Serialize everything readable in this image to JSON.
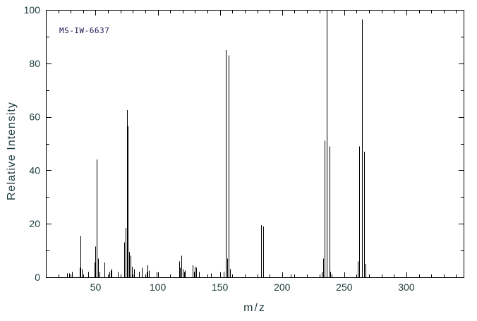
{
  "chart_data": {
    "type": "bar",
    "subtype": "mass-spectrum-stick-plot",
    "title": "",
    "xlabel": "m/z",
    "ylabel": "Relative Intensity",
    "annotation": "MS-IW-6637",
    "xlim": [
      10,
      346
    ],
    "ylim": [
      0,
      100
    ],
    "x_major_ticks": [
      50,
      100,
      150,
      200,
      250,
      300
    ],
    "x_minor_step": 10,
    "y_major_ticks": [
      0,
      20,
      40,
      60,
      80,
      100
    ],
    "y_minor_step": 10,
    "grid": false,
    "legend": false,
    "colors": {
      "peak_line": "#000000",
      "frame": "#000000",
      "tick_text": "#1c3a3a",
      "annotation_text": "#15154f",
      "background": "#ffffff"
    },
    "peaks": [
      [
        27,
        1.5
      ],
      [
        29,
        1.5
      ],
      [
        31,
        2
      ],
      [
        37,
        3.5
      ],
      [
        38,
        15.5
      ],
      [
        39,
        3
      ],
      [
        44,
        2
      ],
      [
        49,
        5.5
      ],
      [
        50,
        11.5
      ],
      [
        51,
        44
      ],
      [
        52,
        7
      ],
      [
        53,
        2
      ],
      [
        57,
        5.5
      ],
      [
        61,
        2
      ],
      [
        62,
        2.5
      ],
      [
        63,
        3
      ],
      [
        68,
        2
      ],
      [
        73,
        13
      ],
      [
        74,
        18.5
      ],
      [
        75,
        62.5
      ],
      [
        76,
        56.5
      ],
      [
        77,
        9.5
      ],
      [
        78,
        8
      ],
      [
        79,
        4
      ],
      [
        81,
        3
      ],
      [
        85,
        2
      ],
      [
        87,
        3.5
      ],
      [
        91,
        2
      ],
      [
        92,
        4.5
      ],
      [
        93,
        2.5
      ],
      [
        99,
        2
      ],
      [
        117,
        6
      ],
      [
        118,
        3.5
      ],
      [
        119,
        8
      ],
      [
        120,
        3
      ],
      [
        121,
        2
      ],
      [
        122,
        2.5
      ],
      [
        128,
        4.5
      ],
      [
        129,
        2
      ],
      [
        130,
        4
      ],
      [
        131,
        3.5
      ],
      [
        133,
        2
      ],
      [
        143,
        1.5
      ],
      [
        153,
        2
      ],
      [
        155,
        85
      ],
      [
        156,
        7
      ],
      [
        157,
        83
      ],
      [
        158,
        3
      ],
      [
        183,
        19.5
      ],
      [
        185,
        19
      ],
      [
        207,
        1
      ],
      [
        232,
        2
      ],
      [
        233,
        7
      ],
      [
        234,
        51
      ],
      [
        236,
        100
      ],
      [
        238,
        49
      ],
      [
        239,
        2
      ],
      [
        261,
        6
      ],
      [
        262,
        49
      ],
      [
        264,
        96.5
      ],
      [
        266,
        47
      ],
      [
        267,
        5
      ]
    ]
  }
}
